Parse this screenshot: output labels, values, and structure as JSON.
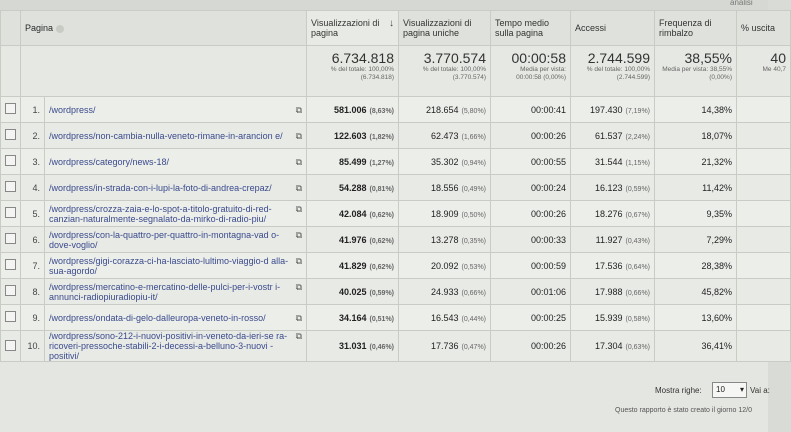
{
  "header": {
    "page": "Pagina",
    "pageviews": "Visualizzazioni di pagina",
    "unique": "Visualizzazioni di pagina uniche",
    "avgtime": "Tempo medio sulla pagina",
    "entrances": "Accessi",
    "bounce": "Frequenza di rimbalzo",
    "exit": "% uscita",
    "topright": "analisi"
  },
  "totals": {
    "pageviews": {
      "value": "6.734.818",
      "sub": "% del totale: 100,00% (6.734.818)"
    },
    "unique": {
      "value": "3.770.574",
      "sub": "% del totale: 100,00% (3.770.574)"
    },
    "avgtime": {
      "value": "00:00:58",
      "sub": "Media per vista: 00:00:58 (0,00%)"
    },
    "entrances": {
      "value": "2.744.599",
      "sub": "% del totale: 100,00% (2.744.599)"
    },
    "bounce": {
      "value": "38,55%",
      "sub": "Media per vista: 38,55% (0,00%)"
    },
    "exit": {
      "value": "40",
      "sub": "Me 40,7"
    }
  },
  "rows": [
    {
      "idx": "1.",
      "page": "/wordpress/",
      "pv": "581.006",
      "pv_pct": "(8,63%)",
      "uq": "218.654",
      "uq_pct": "(5,80%)",
      "time": "00:00:41",
      "ent": "197.430",
      "ent_pct": "(7,19%)",
      "bounce": "14,38%"
    },
    {
      "idx": "2.",
      "page": "/wordpress/non-cambia-nulla-veneto-rimane-in-arancion e/",
      "pv": "122.603",
      "pv_pct": "(1,82%)",
      "uq": "62.473",
      "uq_pct": "(1,66%)",
      "time": "00:00:26",
      "ent": "61.537",
      "ent_pct": "(2,24%)",
      "bounce": "18,07%"
    },
    {
      "idx": "3.",
      "page": "/wordpress/category/news-18/",
      "pv": "85.499",
      "pv_pct": "(1,27%)",
      "uq": "35.302",
      "uq_pct": "(0,94%)",
      "time": "00:00:55",
      "ent": "31.544",
      "ent_pct": "(1,15%)",
      "bounce": "21,32%"
    },
    {
      "idx": "4.",
      "page": "/wordpress/in-strada-con-i-lupi-la-foto-di-andrea-crepaz/",
      "pv": "54.288",
      "pv_pct": "(0,81%)",
      "uq": "18.556",
      "uq_pct": "(0,49%)",
      "time": "00:00:24",
      "ent": "16.123",
      "ent_pct": "(0,59%)",
      "bounce": "11,42%"
    },
    {
      "idx": "5.",
      "page": "/wordpress/crozza-zaia-e-lo-spot-a-titolo-gratuito-di-red-canzian-naturalmente-segnalato-da-mirko-di-radio-piu/",
      "pv": "42.084",
      "pv_pct": "(0,62%)",
      "uq": "18.909",
      "uq_pct": "(0,50%)",
      "time": "00:00:26",
      "ent": "18.276",
      "ent_pct": "(0,67%)",
      "bounce": "9,35%"
    },
    {
      "idx": "6.",
      "page": "/wordpress/con-la-quattro-per-quattro-in-montagna-vad o-dove-voglio/",
      "pv": "41.976",
      "pv_pct": "(0,62%)",
      "uq": "13.278",
      "uq_pct": "(0,35%)",
      "time": "00:00:33",
      "ent": "11.927",
      "ent_pct": "(0,43%)",
      "bounce": "7,29%"
    },
    {
      "idx": "7.",
      "page": "/wordpress/gigi-corazza-ci-ha-lasciato-lultimo-viaggio-d alla-sua-agordo/",
      "pv": "41.829",
      "pv_pct": "(0,62%)",
      "uq": "20.092",
      "uq_pct": "(0,53%)",
      "time": "00:00:59",
      "ent": "17.536",
      "ent_pct": "(0,64%)",
      "bounce": "28,38%"
    },
    {
      "idx": "8.",
      "page": "/wordpress/mercatino-e-mercatino-delle-pulci-per-i-vostr i-annunci-radiopiuradiopiu-it/",
      "pv": "40.025",
      "pv_pct": "(0,59%)",
      "uq": "24.933",
      "uq_pct": "(0,66%)",
      "time": "00:01:06",
      "ent": "17.988",
      "ent_pct": "(0,66%)",
      "bounce": "45,82%"
    },
    {
      "idx": "9.",
      "page": "/wordpress/ondata-di-gelo-dalleuropa-veneto-in-rosso/",
      "pv": "34.164",
      "pv_pct": "(0,51%)",
      "uq": "16.543",
      "uq_pct": "(0,44%)",
      "time": "00:00:25",
      "ent": "15.939",
      "ent_pct": "(0,58%)",
      "bounce": "13,60%"
    },
    {
      "idx": "10.",
      "page": "/wordpress/sono-212-i-nuovi-positivi-in-veneto-da-ieri-se ra-ricoveri-pressoche-stabili-2-i-decessi-a-belluno-3-nuovi -positivi/",
      "pv": "31.031",
      "pv_pct": "(0,46%)",
      "uq": "17.736",
      "uq_pct": "(0,47%)",
      "time": "00:00:26",
      "ent": "17.304",
      "ent_pct": "(0,63%)",
      "bounce": "36,41%"
    }
  ],
  "footer": {
    "show_rows": "Mostra righe:",
    "rows_value": "10",
    "goto": "Vai a:",
    "created": "Questo rapporto è stato creato il giorno 12/0"
  }
}
